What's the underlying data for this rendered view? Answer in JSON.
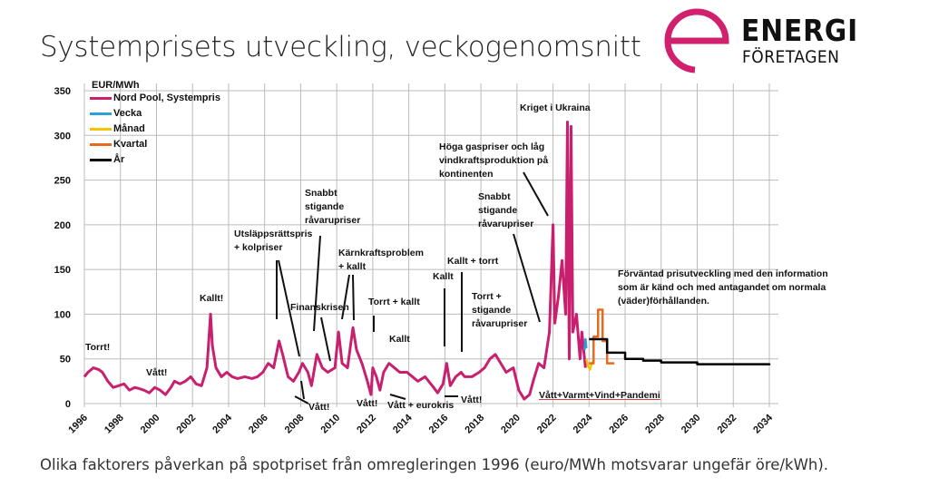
{
  "title": "Systemprisets utveckling, veckogenomsnitt",
  "caption": "Olika faktorers påverkan på spotpriset från omregleringen 1996 (euro/MWh motsvarar ungefär öre/kWh).",
  "logo": {
    "line1": "ENERGI",
    "line2": "FÖRETAGEN",
    "color": "#d0206e"
  },
  "chart_data": {
    "type": "line",
    "title": "Systemprisets utveckling, veckogenomsnitt",
    "ylabel": "EUR/MWh",
    "xlabel": "",
    "xlim": [
      1996,
      2034
    ],
    "ylim": [
      0,
      350
    ],
    "grid": true,
    "legend_position": "top-left",
    "x_ticks": [
      "1996",
      "1998",
      "2000",
      "2002",
      "2004",
      "2006",
      "2008",
      "2010",
      "2012",
      "2014",
      "2016",
      "2018",
      "2020",
      "2022",
      "2024",
      "2026",
      "2028",
      "2030",
      "2032",
      "2034"
    ],
    "y_ticks": [
      "0",
      "50",
      "100",
      "150",
      "200",
      "250",
      "300",
      "350"
    ],
    "series": [
      {
        "name": "Nord Pool, Systempris",
        "color": "#c8206e",
        "x": [
          1996.0,
          1996.2,
          1996.5,
          1996.8,
          1997.0,
          1997.3,
          1997.6,
          1997.9,
          1998.2,
          1998.5,
          1998.8,
          1999.0,
          1999.3,
          1999.6,
          1999.9,
          2000.2,
          2000.5,
          2000.8,
          2001.0,
          2001.3,
          2001.6,
          2001.9,
          2002.2,
          2002.5,
          2002.8,
          2003.0,
          2003.1,
          2003.3,
          2003.6,
          2003.9,
          2004.2,
          2004.5,
          2004.9,
          2005.3,
          2005.6,
          2005.9,
          2006.2,
          2006.5,
          2006.8,
          2007.0,
          2007.3,
          2007.6,
          2007.9,
          2008.1,
          2008.4,
          2008.6,
          2008.9,
          2009.2,
          2009.5,
          2009.9,
          2010.1,
          2010.3,
          2010.6,
          2010.9,
          2011.1,
          2011.4,
          2011.7,
          2011.9,
          2012.0,
          2012.2,
          2012.4,
          2012.6,
          2012.9,
          2013.2,
          2013.5,
          2013.9,
          2014.2,
          2014.5,
          2014.9,
          2015.3,
          2015.6,
          2015.9,
          2016.1,
          2016.3,
          2016.6,
          2016.9,
          2017.1,
          2017.5,
          2017.9,
          2018.2,
          2018.5,
          2018.8,
          2019.1,
          2019.4,
          2019.8,
          2020.1,
          2020.4,
          2020.7,
          2020.9,
          2021.2,
          2021.5,
          2021.8,
          2022.0,
          2022.1,
          2022.3,
          2022.5,
          2022.7,
          2022.8,
          2022.9,
          2023.0,
          2023.1,
          2023.3,
          2023.5,
          2023.6,
          2023.8
        ],
        "values": [
          30,
          35,
          40,
          38,
          35,
          25,
          18,
          20,
          22,
          15,
          18,
          17,
          15,
          12,
          18,
          15,
          10,
          18,
          25,
          22,
          25,
          30,
          22,
          20,
          40,
          100,
          65,
          40,
          30,
          35,
          30,
          28,
          30,
          28,
          30,
          35,
          45,
          40,
          70,
          55,
          30,
          25,
          35,
          45,
          35,
          20,
          55,
          40,
          35,
          40,
          80,
          45,
          40,
          85,
          60,
          45,
          25,
          10,
          40,
          30,
          15,
          35,
          45,
          40,
          35,
          35,
          30,
          25,
          30,
          20,
          12,
          22,
          45,
          20,
          30,
          35,
          30,
          30,
          35,
          40,
          50,
          55,
          45,
          35,
          40,
          15,
          5,
          10,
          25,
          45,
          40,
          80,
          200,
          90,
          120,
          160,
          100,
          315,
          50,
          310,
          80,
          100,
          50,
          80,
          40
        ]
      },
      {
        "name": "Vecka",
        "color": "#2a9fd8",
        "x": [
          2023.75,
          2023.8,
          2023.85
        ],
        "values": [
          60,
          72,
          62
        ]
      },
      {
        "name": "Månad",
        "color": "#f5c400",
        "x": [
          2023.85,
          2023.95,
          2024.05,
          2024.15,
          2024.25
        ],
        "values": [
          50,
          42,
          38,
          45,
          48
        ]
      },
      {
        "name": "Kvartal",
        "color": "#e86a1e",
        "x": [
          2024.0,
          2024.25,
          2024.5,
          2024.75,
          2025.0
        ],
        "values": [
          45,
          75,
          105,
          70,
          45
        ]
      },
      {
        "name": "År",
        "color": "#000000",
        "x": [
          2024.0,
          2025.0,
          2026.0,
          2027.0,
          2028.0,
          2030.0,
          2034.0
        ],
        "values": [
          72,
          57,
          50,
          48,
          46,
          44,
          45
        ]
      }
    ],
    "annotations": [
      "Torrt!",
      "Vått!",
      "Kallt!",
      "Utsläppsrättspris\n+ kolpriser",
      "Snabbt\nstigande\nråvarupriser",
      "Finanskrisen",
      "Kärnkraftsproblem\n+ kallt",
      "Torrt + kallt",
      "Kallt",
      "Vått!",
      "Vått!",
      "Vått + eurokris",
      "Kallt",
      "Kallt + torrt",
      "Torrt +\nstigande\nråvarupriser",
      "Vått!",
      "Snabbt\nstigande\nråvarupriser",
      "Höga gaspriser och låg\nvindkraftsproduktion på\nkontinenten",
      "Kriget i Ukraina",
      "Vått+Varmt+Vind+Pandemi",
      "Förväntad prisutveckling med den information\nsom är känd och med antagandet om normala\n(väder)förhållanden."
    ]
  }
}
